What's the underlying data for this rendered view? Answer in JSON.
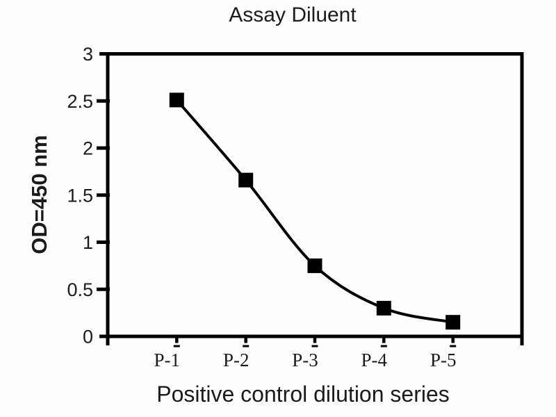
{
  "chart_data": {
    "type": "line",
    "title": "Assay Diluent",
    "xlabel": "Positive control dilution series",
    "ylabel": "OD=450 nm",
    "categories": [
      "P-1",
      "P-2",
      "P-3",
      "P-4",
      "P-5"
    ],
    "values": [
      2.51,
      1.66,
      0.75,
      0.3,
      0.15
    ],
    "ylim": [
      0,
      3
    ],
    "yticks": [
      0,
      0.5,
      1,
      1.5,
      2,
      2.5,
      3
    ],
    "ytick_labels": [
      "0",
      "0.5",
      "1",
      "1.5",
      "2",
      "2.5",
      "3"
    ],
    "grid": false,
    "legend": false,
    "smooth": true,
    "marker": "square",
    "line_color": "#000000",
    "marker_color": "#000000",
    "frame_color": "#000000",
    "text_color": "#1b1b1b",
    "background_color": "#fdfdfd"
  }
}
